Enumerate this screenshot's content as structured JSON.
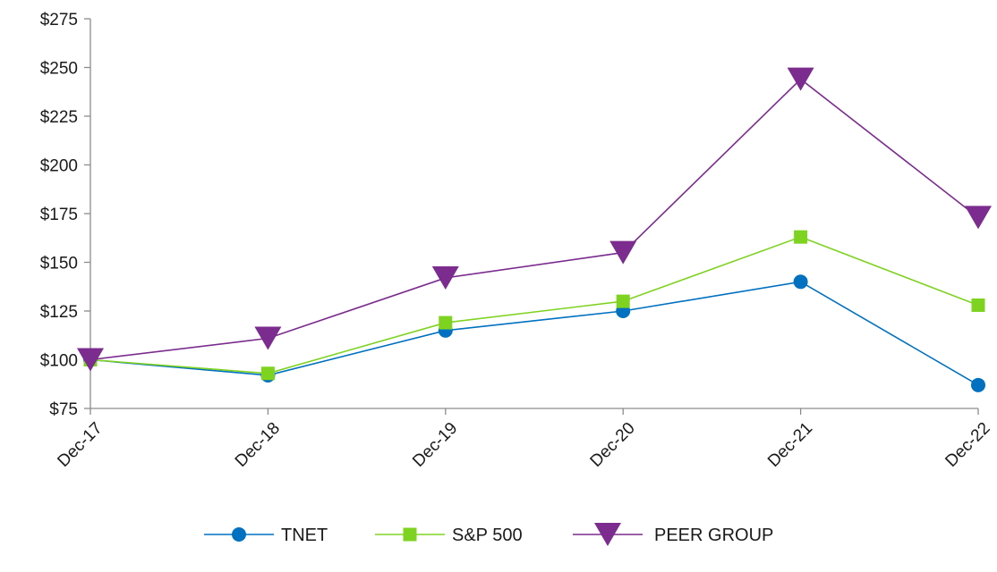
{
  "chart_data": {
    "type": "line",
    "categories": [
      "Dec-17",
      "Dec-18",
      "Dec-19",
      "Dec-20",
      "Dec-21",
      "Dec-22"
    ],
    "y_ticks": [
      "$75",
      "$100",
      "$125",
      "$150",
      "$175",
      "$200",
      "$225",
      "$250",
      "$275"
    ],
    "y_tick_values": [
      75,
      100,
      125,
      150,
      175,
      200,
      225,
      250,
      275
    ],
    "ylim": [
      75,
      275
    ],
    "grid": false,
    "legend_position": "bottom",
    "series": [
      {
        "name": "TNET",
        "values": [
          100,
          92,
          115,
          125,
          140,
          87
        ],
        "color": "#0070C0",
        "marker": "circle"
      },
      {
        "name": "S&P 500",
        "values": [
          100,
          93,
          119,
          130,
          163,
          128
        ],
        "color": "#7ED321",
        "marker": "square"
      },
      {
        "name": "PEER GROUP",
        "values": [
          100,
          111,
          142,
          155,
          244,
          173
        ],
        "color": "#7B2C8E",
        "marker": "triangle-down"
      }
    ]
  }
}
